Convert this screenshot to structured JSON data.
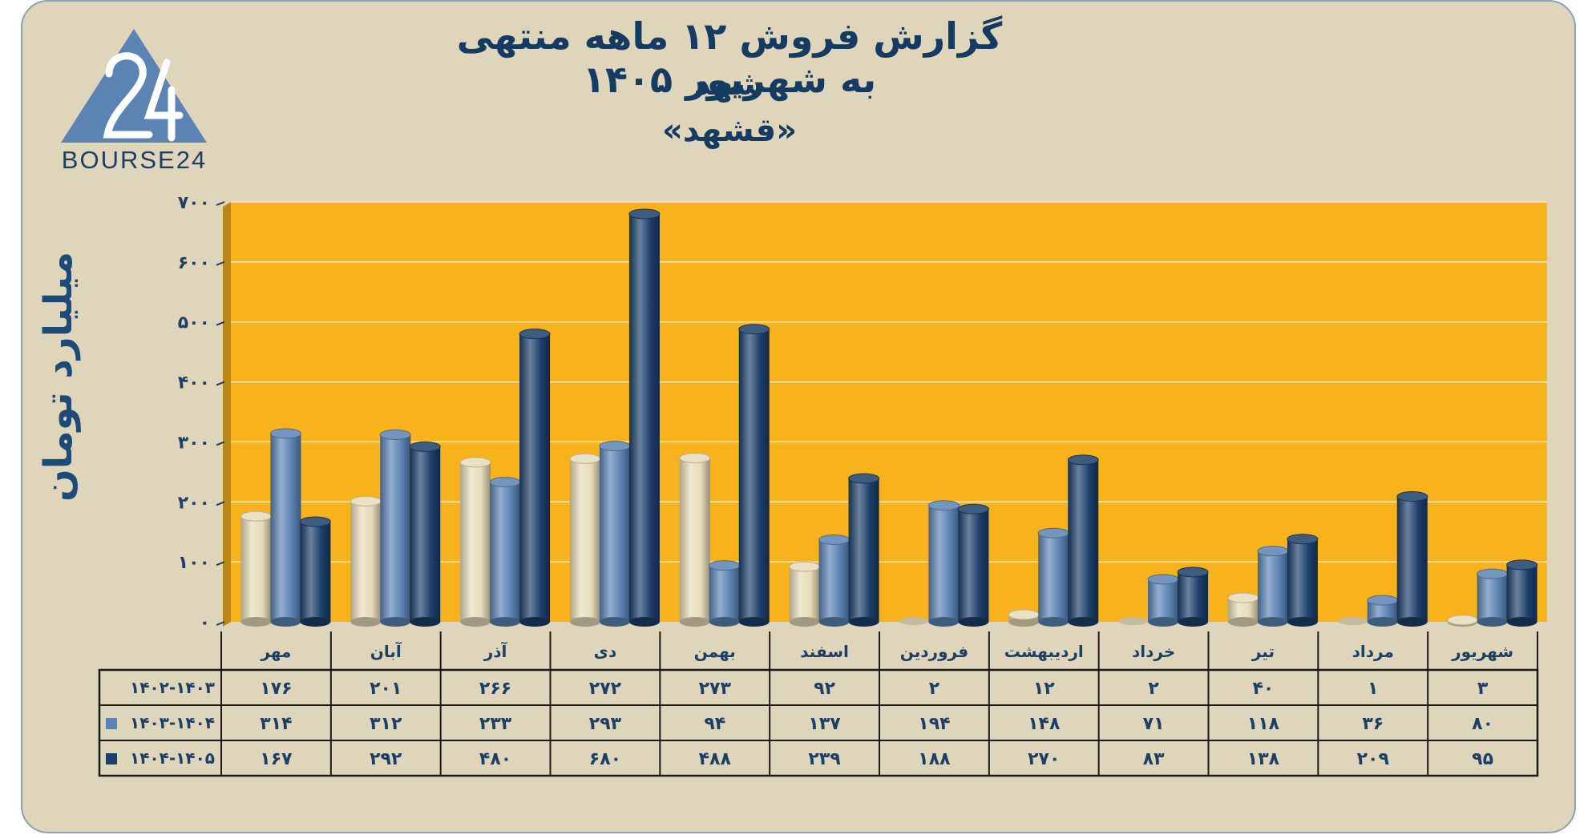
{
  "header": {
    "title_line1": "گزارش  فروش ۱۲ ماهه منتهی به شهریور ۱۴۰۵",
    "title_line2": "شهد",
    "title_line3": "«قشهد»"
  },
  "logo": {
    "text": "BOURSE24",
    "mark": "24"
  },
  "colors": {
    "background": "#ded5bb",
    "plot_area": "#f7b21c",
    "series_1": "#e6dbb8",
    "series_2": "#5b83b3",
    "series_3": "#1c3f6a",
    "text": "#1d3f66"
  },
  "chart_data": {
    "type": "bar",
    "ylabel": "میلیارد تومان",
    "ylim": [
      0,
      700
    ],
    "yticks": [
      "۰",
      "۱۰۰",
      "۲۰۰",
      "۳۰۰",
      "۴۰۰",
      "۵۰۰",
      "۶۰۰",
      "۷۰۰"
    ],
    "grid": true,
    "legend": "table-left",
    "categories": [
      "مهر",
      "آبان",
      "آذر",
      "دی",
      "بهمن",
      "اسفند",
      "فروردین",
      "اردیبهشت",
      "خرداد",
      "تیر",
      "مرداد",
      "شهریور"
    ],
    "series": [
      {
        "name": "۱۴۰۲-۱۴۰۳",
        "values": [
          176,
          201,
          266,
          272,
          273,
          92,
          2,
          12,
          2,
          40,
          1,
          3
        ],
        "labels": [
          "۱۷۶",
          "۲۰۱",
          "۲۶۶",
          "۲۷۲",
          "۲۷۳",
          "۹۲",
          "۲",
          "۱۲",
          "۲",
          "۴۰",
          "۱",
          "۳"
        ]
      },
      {
        "name": "۱۴۰۳-۱۴۰۴",
        "values": [
          314,
          312,
          233,
          293,
          94,
          137,
          194,
          148,
          71,
          118,
          36,
          80
        ],
        "labels": [
          "۳۱۴",
          "۳۱۲",
          "۲۳۳",
          "۲۹۳",
          "۹۴",
          "۱۳۷",
          "۱۹۴",
          "۱۴۸",
          "۷۱",
          "۱۱۸",
          "۳۶",
          "۸۰"
        ]
      },
      {
        "name": "۱۴۰۴-۱۴۰۵",
        "values": [
          167,
          292,
          480,
          680,
          488,
          239,
          188,
          270,
          83,
          138,
          209,
          95
        ],
        "labels": [
          "۱۶۷",
          "۲۹۲",
          "۴۸۰",
          "۶۸۰",
          "۴۸۸",
          "۲۳۹",
          "۱۸۸",
          "۲۷۰",
          "۸۳",
          "۱۳۸",
          "۲۰۹",
          "۹۵"
        ]
      }
    ]
  }
}
